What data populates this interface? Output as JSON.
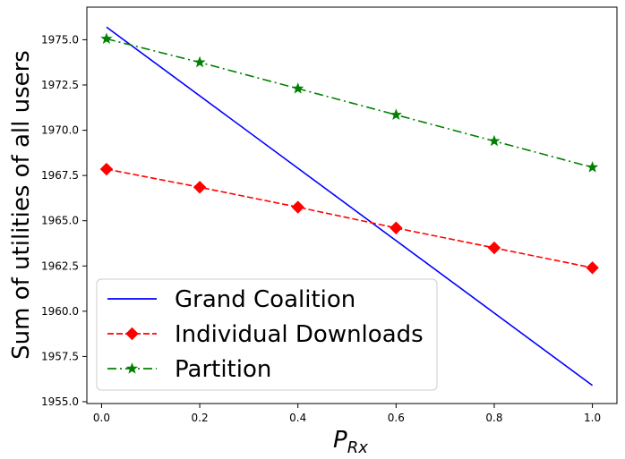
{
  "chart_data": {
    "type": "line",
    "title": "",
    "xlabel": "P",
    "xlabel_sub": "Rx",
    "ylabel": "Sum of utilities of all users",
    "xlim": [
      -0.03,
      1.05
    ],
    "ylim": [
      1954.9,
      1976.8
    ],
    "x_ticks": [
      0.0,
      0.2,
      0.4,
      0.6,
      0.8,
      1.0
    ],
    "x_tick_labels": [
      "0.0",
      "0.2",
      "0.4",
      "0.6",
      "0.8",
      "1.0"
    ],
    "y_ticks": [
      1955.0,
      1957.5,
      1960.0,
      1962.5,
      1965.0,
      1967.5,
      1970.0,
      1972.5,
      1975.0
    ],
    "y_tick_labels": [
      "1955.0",
      "1957.5",
      "1960.0",
      "1962.5",
      "1965.0",
      "1967.5",
      "1970.0",
      "1972.5",
      "1975.0"
    ],
    "grid": false,
    "legend_position": "lower-left",
    "series": [
      {
        "name": "Grand Coalition",
        "color": "#0000ff",
        "line_style": "solid",
        "marker": "none",
        "x": [
          0.01,
          1.0
        ],
        "y": [
          1975.7,
          1955.9
        ]
      },
      {
        "name": "Individual Downloads",
        "color": "#ff0000",
        "line_style": "dashed",
        "marker": "diamond",
        "x": [
          0.01,
          0.2,
          0.4,
          0.6,
          0.8,
          1.0
        ],
        "y": [
          1967.85,
          1966.85,
          1965.75,
          1964.6,
          1963.5,
          1962.4
        ]
      },
      {
        "name": "Partition",
        "color": "#008000",
        "line_style": "dashdot",
        "marker": "star",
        "x": [
          0.01,
          0.2,
          0.4,
          0.6,
          0.8,
          1.0
        ],
        "y": [
          1975.05,
          1973.75,
          1972.3,
          1970.85,
          1969.4,
          1967.95
        ]
      }
    ]
  }
}
